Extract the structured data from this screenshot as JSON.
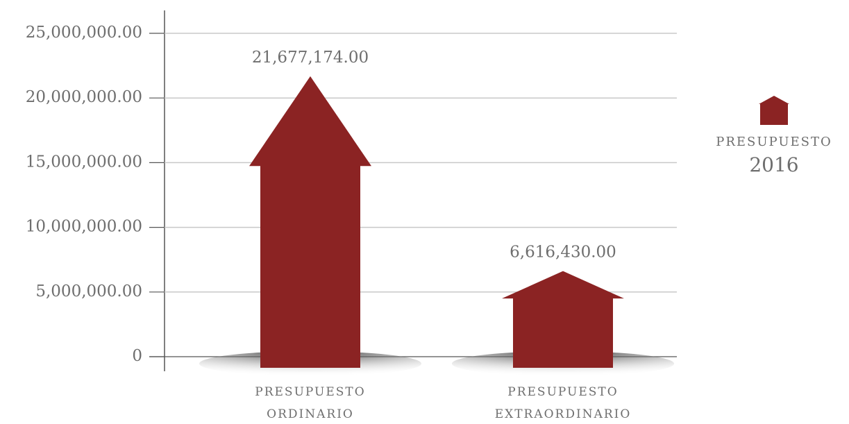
{
  "chart_data": {
    "type": "bar",
    "categories": [
      "PRESUPUESTO ORDINARIO",
      "PRESUPUESTO EXTRAORDINARIO"
    ],
    "series": [
      {
        "name": "PRESUPUESTO 2016",
        "color": "#8b2323",
        "values": [
          21677174,
          6616430
        ],
        "value_labels": [
          "21,677,174.00",
          "6,616,430.00"
        ]
      }
    ],
    "ylim": [
      0,
      25000000
    ],
    "yticks": [
      0,
      {
        "value": 5000000,
        "label": "5,000,000.00"
      },
      {
        "value": 10000000,
        "label": "10,000,000.00"
      },
      {
        "value": 15000000,
        "label": "15,000,000.00"
      },
      {
        "value": 20000000,
        "label": "20,000,000.00"
      },
      {
        "value": 25000000,
        "label": "25,000,000.00"
      }
    ],
    "grid": true,
    "legend": "right"
  }
}
